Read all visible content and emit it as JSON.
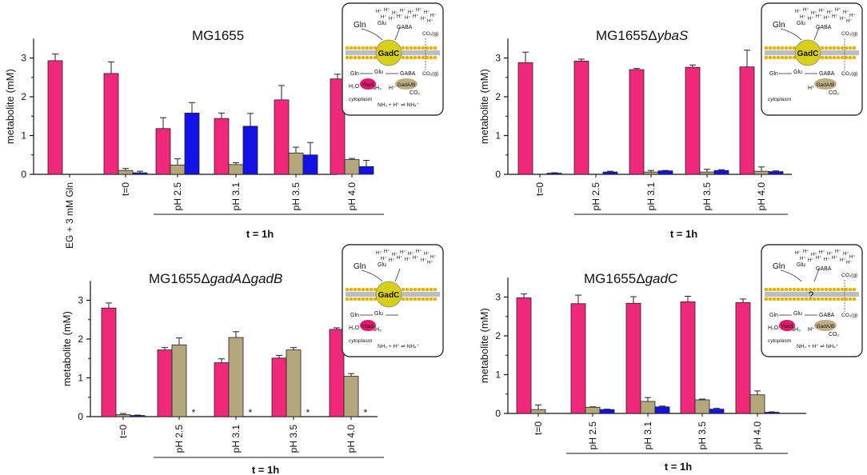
{
  "colors": {
    "gln": "#f0287a",
    "glu": "#b5a77c",
    "gaba": "#1212e6",
    "gadc": "#d7cf1a",
    "ybas": "#e0196f",
    "gadab": "#bfae82"
  },
  "chart_data": [
    {
      "type": "bar",
      "id": "p1",
      "title_parts": [
        "MG1655"
      ],
      "ylabel": "metabolite (mM)",
      "ylim": [
        0,
        3.5
      ],
      "yticks": [
        "0",
        "1",
        "2",
        "3"
      ],
      "categories": [
        "EG + 3 mM Gln",
        "t=0",
        "pH 2.5",
        "pH 3.1",
        "pH 3.5",
        "pH 4.0"
      ],
      "series": [
        {
          "name": "Gln",
          "values": [
            2.93,
            2.6,
            1.18,
            1.44,
            1.92,
            2.46
          ],
          "errors": [
            0.17,
            0.3,
            0.28,
            0.14,
            0.37,
            0.12
          ]
        },
        {
          "name": "Glu",
          "values": [
            0,
            0.1,
            0.24,
            0.25,
            0.55,
            0.38
          ],
          "errors": [
            0,
            0.05,
            0.16,
            0.05,
            0.15,
            0.03
          ]
        },
        {
          "name": "GABA",
          "values": [
            0,
            0.04,
            1.58,
            1.24,
            0.5,
            0.2
          ],
          "errors": [
            0,
            0.04,
            0.27,
            0.33,
            0.32,
            0.16
          ]
        }
      ],
      "bracket_label": "t = 1h",
      "star_label": "",
      "inset": {
        "top_labels": [
          "Gln",
          "Glu",
          "GABA"
        ],
        "center_label": "GadC",
        "inner_labels": [
          "Gln",
          "Glu",
          "GABA",
          "H₂O",
          "NH₃",
          "YbaS",
          "GadA/B",
          "CO₂"
        ],
        "co2_label": "CO₂(g)",
        "co2_label2": "CO₂(g)",
        "bottom_label": "NH₃ + H⁺ ⇌ NH₄⁺",
        "cyto_label": "cytoplasm",
        "proton_label": "H⁺",
        "question": ""
      }
    },
    {
      "type": "bar",
      "id": "p2",
      "title_parts": [
        "MG1655Δ",
        "ybaS"
      ],
      "ylabel": "metabolite (mM)",
      "ylim": [
        0,
        3.5
      ],
      "yticks": [
        "0",
        "1",
        "2",
        "3"
      ],
      "categories": [
        "t=0",
        "pH 2.5",
        "pH 3.1",
        "pH 3.5",
        "pH 4.0"
      ],
      "series": [
        {
          "name": "Gln",
          "values": [
            2.88,
            2.92,
            2.7,
            2.76,
            2.77
          ],
          "errors": [
            0.27,
            0.05,
            0.03,
            0.06,
            0.43
          ]
        },
        {
          "name": "Glu",
          "values": [
            0,
            0,
            0.06,
            0.06,
            0.08
          ],
          "errors": [
            0,
            0,
            0.04,
            0.07,
            0.11
          ]
        },
        {
          "name": "GABA",
          "values": [
            0.03,
            0.06,
            0.09,
            0.1,
            0.07
          ],
          "errors": [
            0.01,
            0.02,
            0.01,
            0.02,
            0.02
          ]
        }
      ],
      "bracket_label": "t = 1h",
      "star_label": "",
      "inset": {
        "top_labels": [
          "Gln",
          "Glu",
          "GABA"
        ],
        "center_label": "GadC",
        "inner_labels": [
          "Gln",
          "Glu",
          "GABA",
          "",
          "",
          "",
          "GadA/B",
          "CO₂"
        ],
        "co2_label": "CO₂(g)",
        "co2_label2": "CO₂(g)",
        "bottom_label": "",
        "cyto_label": "cytoplasm",
        "proton_label": "H⁺",
        "question": ""
      }
    },
    {
      "type": "bar",
      "id": "p3",
      "title_parts": [
        "MG1655Δ",
        "gadA",
        "Δ",
        "gadB"
      ],
      "ylabel": "metabolite (mM)",
      "ylim": [
        0,
        3.5
      ],
      "yticks": [
        "0",
        "1",
        "2",
        "3"
      ],
      "categories": [
        "t=0",
        "pH 2.5",
        "pH 3.1",
        "pH 3.5",
        "pH 4.0"
      ],
      "series": [
        {
          "name": "Gln",
          "values": [
            2.8,
            1.72,
            1.39,
            1.51,
            2.25
          ],
          "errors": [
            0.13,
            0.06,
            0.1,
            0.07,
            0.04
          ]
        },
        {
          "name": "Glu",
          "values": [
            0.05,
            1.85,
            2.04,
            1.72,
            1.04
          ],
          "errors": [
            0.03,
            0.18,
            0.15,
            0.06,
            0.07
          ]
        },
        {
          "name": "GABA",
          "values": [
            0.03,
            0,
            0,
            0,
            0
          ],
          "errors": [
            0.01,
            0,
            0,
            0,
            0
          ]
        }
      ],
      "bracket_label": "t = 1h",
      "star_label": "*",
      "inset": {
        "top_labels": [
          "Gln",
          "Glu",
          ""
        ],
        "center_label": "GadC",
        "inner_labels": [
          "Gln",
          "Glu",
          "",
          "H₂O",
          "NH₃",
          "YbaS",
          "",
          ""
        ],
        "co2_label": "",
        "co2_label2": "",
        "bottom_label": "NH₃ + H⁺ ⇌ NH₄⁺",
        "cyto_label": "cytoplasm",
        "proton_label": "",
        "question": ""
      }
    },
    {
      "type": "bar",
      "id": "p4",
      "title_parts": [
        "MG1655Δ",
        "gadC"
      ],
      "ylabel": "metabolite (mM)",
      "ylim": [
        0,
        3.5
      ],
      "yticks": [
        "0",
        "1",
        "2",
        "3"
      ],
      "categories": [
        "t=0",
        "pH 2.5",
        "pH 3.1",
        "pH 3.5",
        "pH 4.0"
      ],
      "series": [
        {
          "name": "Gln",
          "values": [
            2.98,
            2.83,
            2.84,
            2.88,
            2.86
          ],
          "errors": [
            0.1,
            0.22,
            0.17,
            0.14,
            0.09
          ]
        },
        {
          "name": "Glu",
          "values": [
            0.1,
            0.16,
            0.31,
            0.35,
            0.48
          ],
          "errors": [
            0.12,
            0.01,
            0.1,
            0.02,
            0.1
          ]
        },
        {
          "name": "GABA",
          "values": [
            0,
            0.1,
            0.17,
            0.11,
            0.03
          ],
          "errors": [
            0,
            0.01,
            0.02,
            0.02,
            0.01
          ]
        }
      ],
      "bracket_label": "t = 1h",
      "star_label": "",
      "inset": {
        "top_labels": [
          "Gln",
          "Glu",
          "GABA"
        ],
        "center_label": "",
        "inner_labels": [
          "Gln",
          "Glu",
          "GABA",
          "H₂O",
          "NH₃",
          "YbaS",
          "GadA/B",
          "CO₂"
        ],
        "co2_label": "CO₂(g)",
        "co2_label2": "CO₂(g)",
        "bottom_label": "NH₃ + H⁺ ⇌ NH₄⁺",
        "cyto_label": "cytoplasm",
        "proton_label": "H⁺",
        "question": "?"
      }
    }
  ]
}
